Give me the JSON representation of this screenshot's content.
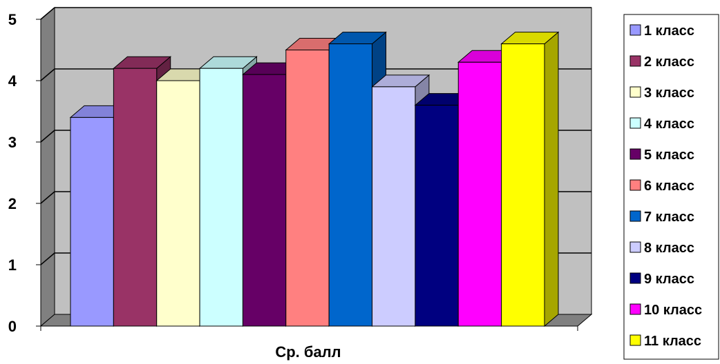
{
  "chart_data": {
    "type": "bar",
    "title": "",
    "xlabel": "Ср. балл",
    "ylabel": "",
    "ylim": [
      0,
      5
    ],
    "yticks": [
      "0",
      "1",
      "2",
      "3",
      "4",
      "5"
    ],
    "categories": [
      "Ср. балл"
    ],
    "grid": true,
    "legend_position": "right",
    "series": [
      {
        "name": "1 класс",
        "values": [
          3.4
        ],
        "color": "#9999FF"
      },
      {
        "name": "2 класс",
        "values": [
          4.2
        ],
        "color": "#993366"
      },
      {
        "name": "3 класс",
        "values": [
          4.0
        ],
        "color": "#FFFFCC"
      },
      {
        "name": "4 класс",
        "values": [
          4.2
        ],
        "color": "#CCFFFF"
      },
      {
        "name": "5 класс",
        "values": [
          4.1
        ],
        "color": "#660066"
      },
      {
        "name": "6 класс",
        "values": [
          4.5
        ],
        "color": "#FF8080"
      },
      {
        "name": "7 класс",
        "values": [
          4.6
        ],
        "color": "#0066CC"
      },
      {
        "name": "8 класс",
        "values": [
          3.9
        ],
        "color": "#CCCCFF"
      },
      {
        "name": "9 класс",
        "values": [
          3.6
        ],
        "color": "#000080"
      },
      {
        "name": "10 класс",
        "values": [
          4.3
        ],
        "color": "#FF00FF"
      },
      {
        "name": "11 класс",
        "values": [
          4.6
        ],
        "color": "#FFFF00"
      }
    ],
    "style": {
      "wall_color": "#C0C0C0",
      "side_wall_color": "#808080",
      "floor_color": "#808080",
      "grid_color": "#000000"
    }
  }
}
